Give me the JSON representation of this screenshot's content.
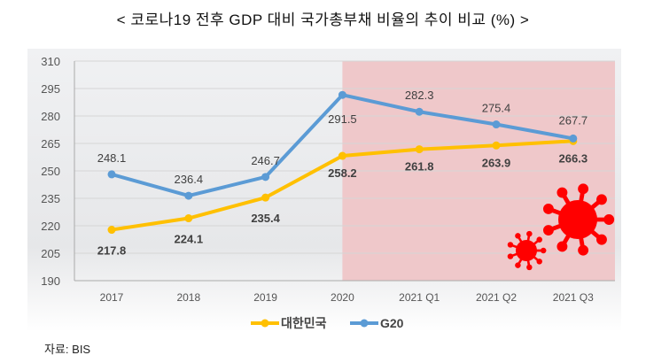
{
  "title": "< 코로나19 전후 GDP 대비 국가총부채 비율의 추이 비교 (%) >",
  "source": "자료: BIS",
  "chart_data": {
    "type": "line",
    "title": "< 코로나19 전후 GDP 대비 국가총부채 비율의 추이 비교 (%) >",
    "categories": [
      "2017",
      "2018",
      "2019",
      "2020",
      "2021 Q1",
      "2021 Q2",
      "2021 Q3"
    ],
    "ylim": [
      190,
      310
    ],
    "yticks": [
      190,
      205,
      220,
      235,
      250,
      265,
      280,
      295,
      310
    ],
    "grid": true,
    "legend": "bottom",
    "highlight_range": [
      "2020",
      "2021 Q3"
    ],
    "highlight_color": "#efc8ca",
    "series": [
      {
        "name": "대한민국",
        "color": "#ffc000",
        "values": [
          217.8,
          224.1,
          235.4,
          258.2,
          261.8,
          263.9,
          266.3
        ]
      },
      {
        "name": "G20",
        "color": "#5b9bd5",
        "values": [
          248.1,
          236.4,
          246.7,
          291.5,
          282.3,
          275.4,
          267.7
        ]
      }
    ]
  }
}
